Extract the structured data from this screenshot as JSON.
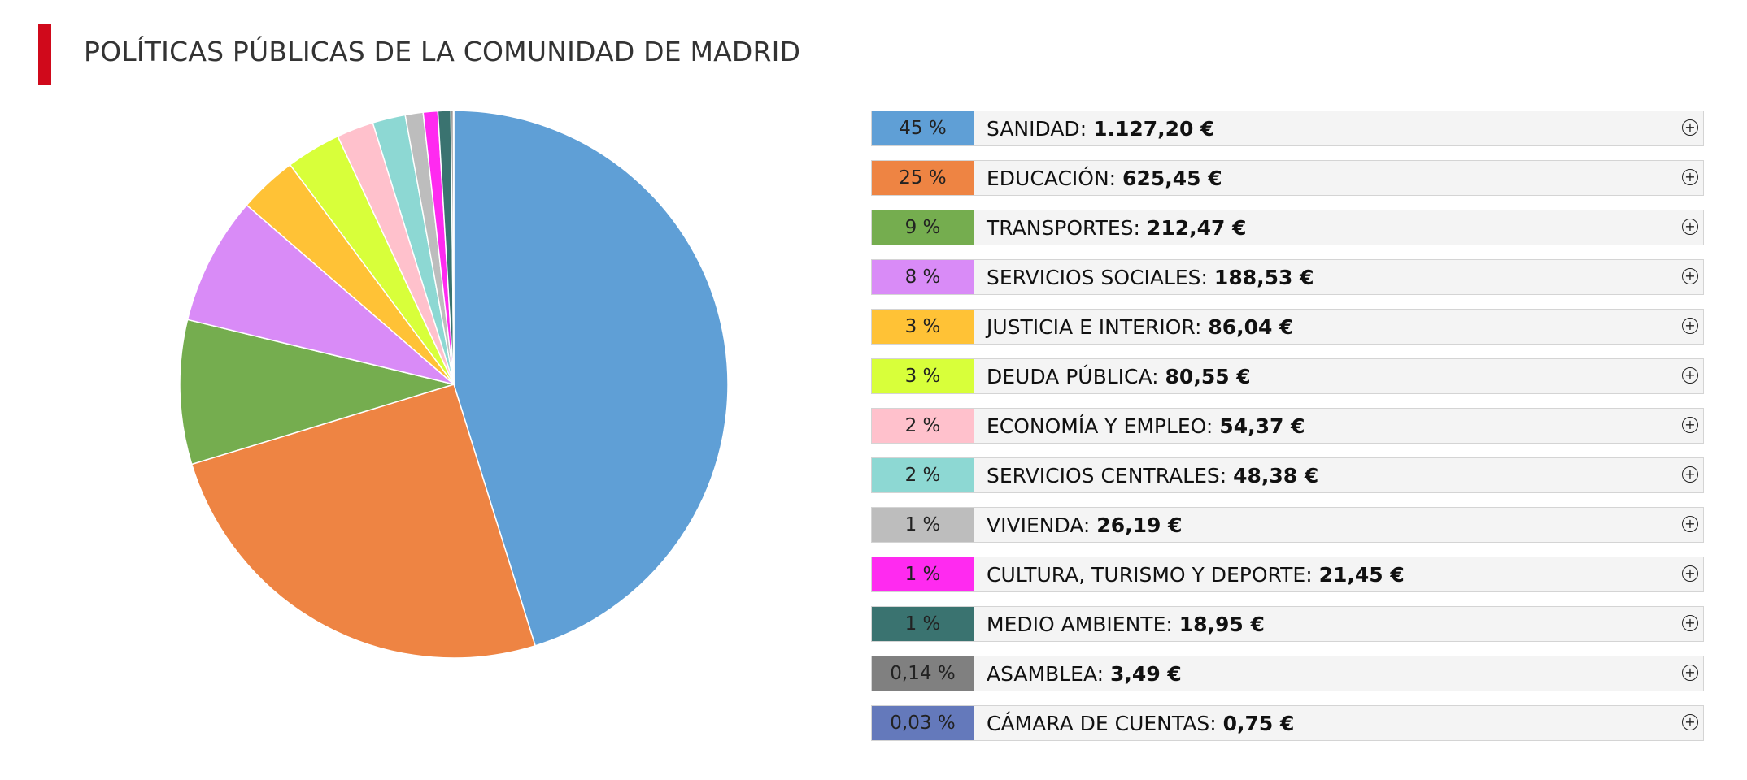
{
  "title": "POLÍTICAS PÚBLICAS DE LA COMUNIDAD DE MADRID",
  "chart_data": {
    "type": "pie",
    "title": "POLÍTICAS PÚBLICAS DE LA COMUNIDAD DE MADRID",
    "legend_position": "right",
    "slices": [
      {
        "name": "SANIDAD",
        "value": 1127.2,
        "value_label": "1.127,20 €",
        "percent_label": "45 %",
        "color": "#5f9fd6"
      },
      {
        "name": "EDUCACIÓN",
        "value": 625.45,
        "value_label": "625,45 €",
        "percent_label": "25 %",
        "color": "#ee8443"
      },
      {
        "name": "TRANSPORTES",
        "value": 212.47,
        "value_label": "212,47 €",
        "percent_label": "9 %",
        "color": "#75ad4f"
      },
      {
        "name": "SERVICIOS SOCIALES",
        "value": 188.53,
        "value_label": "188,53 €",
        "percent_label": "8 %",
        "color": "#d98bf7"
      },
      {
        "name": "JUSTICIA E INTERIOR",
        "value": 86.04,
        "value_label": "86,04 €",
        "percent_label": "3 %",
        "color": "#ffc236"
      },
      {
        "name": "DEUDA PÚBLICA",
        "value": 80.55,
        "value_label": "80,55 €",
        "percent_label": "3 %",
        "color": "#d8ff3a"
      },
      {
        "name": "ECONOMÍA Y EMPLEO",
        "value": 54.37,
        "value_label": "54,37 €",
        "percent_label": "2 %",
        "color": "#ffc1cc"
      },
      {
        "name": "SERVICIOS CENTRALES",
        "value": 48.38,
        "value_label": "48,38 €",
        "percent_label": "2 %",
        "color": "#8dd8d3"
      },
      {
        "name": "VIVIENDA",
        "value": 26.19,
        "value_label": "26,19 €",
        "percent_label": "1 %",
        "color": "#bdbdbd"
      },
      {
        "name": "CULTURA, TURISMO Y DEPORTE",
        "value": 21.45,
        "value_label": "21,45 €",
        "percent_label": "1 %",
        "color": "#ff2af0"
      },
      {
        "name": "MEDIO AMBIENTE",
        "value": 18.95,
        "value_label": "18,95 €",
        "percent_label": "1 %",
        "color": "#3a7370"
      },
      {
        "name": "ASAMBLEA",
        "value": 3.49,
        "value_label": "3,49 €",
        "percent_label": "0,14 %",
        "color": "#808080"
      },
      {
        "name": "CÁMARA DE CUENTAS",
        "value": 0.75,
        "value_label": "0,75 €",
        "percent_label": "0,03 %",
        "color": "#6479bb"
      }
    ]
  },
  "expand_icon": "plus-circle-icon",
  "expand_glyph": "+"
}
